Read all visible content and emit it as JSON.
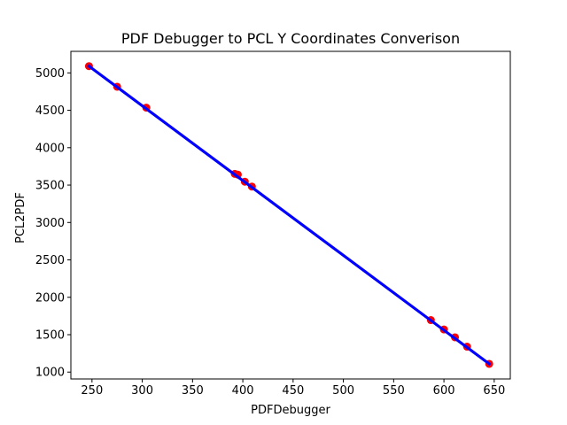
{
  "chart_data": {
    "type": "scatter",
    "title": "PDF Debugger to PCL Y Coordinates Converison",
    "xlabel": "PDFDebugger",
    "ylabel": "PCL2PDF",
    "xlim": [
      229,
      666
    ],
    "ylim": [
      908,
      5288
    ],
    "xticks": [
      250,
      300,
      350,
      400,
      450,
      500,
      550,
      600,
      650
    ],
    "yticks": [
      1000,
      1500,
      2000,
      2500,
      3000,
      3500,
      4000,
      4500,
      5000
    ],
    "grid": false,
    "legend": "none",
    "series": [
      {
        "type": "scatter",
        "color": "#ff0000",
        "x": [
          247,
          275,
          304,
          392,
          395,
          402,
          409,
          587,
          600,
          611,
          623,
          645
        ],
        "y": [
          5090,
          4815,
          4535,
          3650,
          3640,
          3545,
          3480,
          1695,
          1570,
          1465,
          1340,
          1110
        ]
      },
      {
        "type": "line",
        "color": "#0000ff",
        "x": [
          247,
          645
        ],
        "y": [
          5090,
          1110
        ]
      }
    ]
  }
}
